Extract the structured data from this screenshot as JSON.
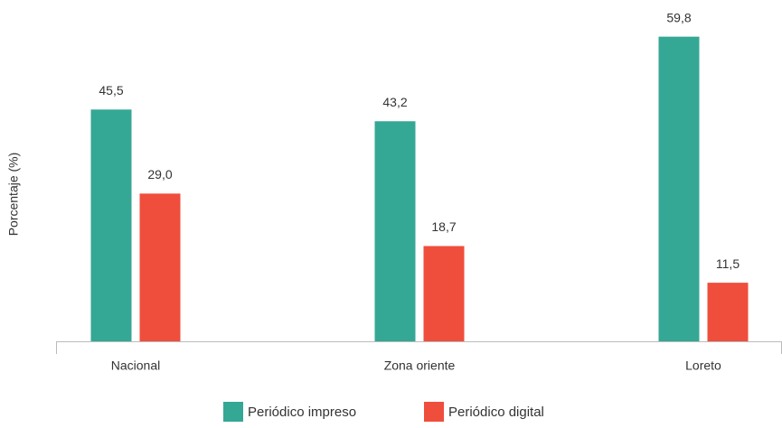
{
  "chart_data": {
    "type": "bar",
    "y_label": "Porcentaje (%)",
    "categories": [
      "Nacional",
      "Zona oriente",
      "Loreto"
    ],
    "series": [
      {
        "name": "Periódico impreso",
        "color": "#35a795",
        "values": [
          45.5,
          43.2,
          59.8
        ],
        "value_labels": [
          "45,5",
          "43,2",
          "59,8"
        ]
      },
      {
        "name": "Periódico digital",
        "color": "#ef4e3c",
        "values": [
          29.0,
          18.7,
          11.5
        ],
        "value_labels": [
          "29,0",
          "18,7",
          "11,5"
        ]
      }
    ],
    "ylim": [
      0,
      67
    ],
    "legend": "bottom"
  }
}
